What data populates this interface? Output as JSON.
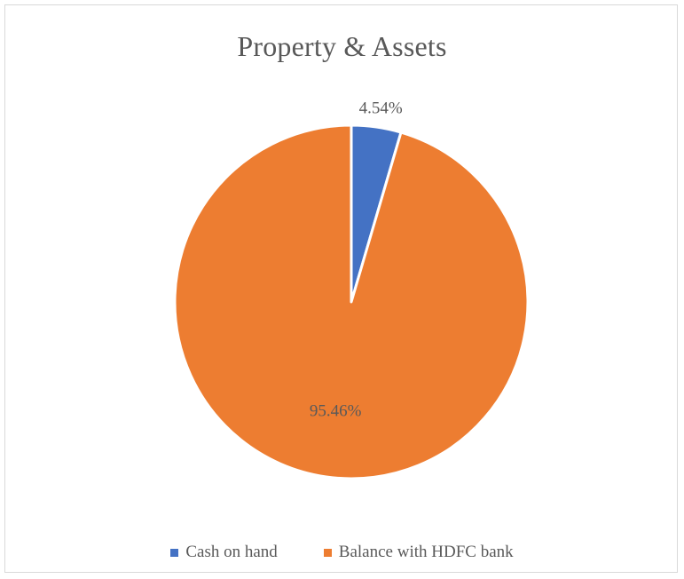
{
  "chart_data": {
    "type": "pie",
    "title": "Property & Assets",
    "start_angle_deg": 0,
    "slices": [
      {
        "label": "Cash on hand",
        "value": 4.54,
        "data_label": "4.54%",
        "color": "#4472c4"
      },
      {
        "label": "Balance with HDFC bank",
        "value": 95.46,
        "data_label": "95.46%",
        "color": "#ed7d31"
      }
    ],
    "legend_position": "bottom",
    "slice_border_color": "#ffffff"
  }
}
